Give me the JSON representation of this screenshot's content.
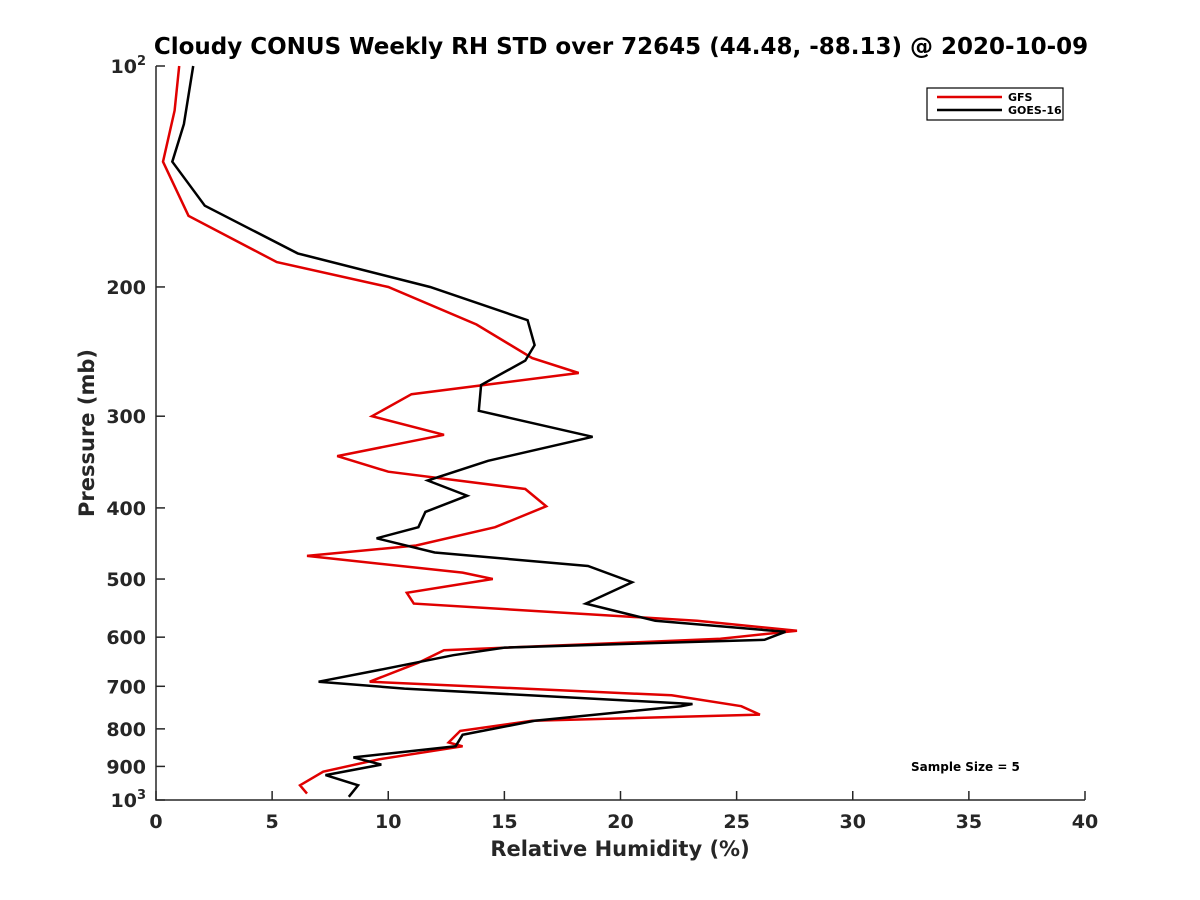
{
  "chart_data": {
    "type": "line",
    "title": "Cloudy CONUS Weekly RH STD over 72645 (44.48, -88.13) @ 2020-10-09",
    "xlabel": "Relative Humidity (%)",
    "ylabel": "Pressure (mb)",
    "xlim": [
      0,
      40
    ],
    "ylim": [
      100,
      1000
    ],
    "y_scale": "log",
    "y_reversed": true,
    "x_ticks": [
      0,
      5,
      10,
      15,
      20,
      25,
      30,
      35,
      40
    ],
    "y_ticks": [
      {
        "value": 100,
        "base": "10",
        "exp": "2"
      },
      {
        "value": 200,
        "label": "200"
      },
      {
        "value": 300,
        "label": "300"
      },
      {
        "value": 400,
        "label": "400"
      },
      {
        "value": 500,
        "label": "500"
      },
      {
        "value": 600,
        "label": "600"
      },
      {
        "value": 700,
        "label": "700"
      },
      {
        "value": 800,
        "label": "800"
      },
      {
        "value": 900,
        "label": "900"
      },
      {
        "value": 1000,
        "base": "10",
        "exp": "3"
      }
    ],
    "grid": false,
    "legend_position": "top-right",
    "annotation": "Sample Size = 5",
    "series": [
      {
        "name": "GFS",
        "color": "#e00000",
        "points": [
          [
            1.0,
            100
          ],
          [
            0.8,
            115
          ],
          [
            0.3,
            135
          ],
          [
            1.4,
            160
          ],
          [
            5.2,
            185
          ],
          [
            10.0,
            200
          ],
          [
            13.8,
            225
          ],
          [
            16.2,
            250
          ],
          [
            18.2,
            262
          ],
          [
            11.0,
            280
          ],
          [
            9.3,
            300
          ],
          [
            12.4,
            318
          ],
          [
            7.8,
            340
          ],
          [
            10.0,
            357
          ],
          [
            15.9,
            377
          ],
          [
            16.8,
            398
          ],
          [
            14.6,
            425
          ],
          [
            11.2,
            450
          ],
          [
            6.5,
            465
          ],
          [
            13.2,
            490
          ],
          [
            14.5,
            500
          ],
          [
            10.8,
            522
          ],
          [
            11.1,
            540
          ],
          [
            23.3,
            570
          ],
          [
            27.6,
            588
          ],
          [
            24.3,
            603
          ],
          [
            12.4,
            625
          ],
          [
            11.3,
            650
          ],
          [
            9.2,
            690
          ],
          [
            22.2,
            720
          ],
          [
            25.2,
            745
          ],
          [
            26.0,
            765
          ],
          [
            16.2,
            780
          ],
          [
            13.1,
            805
          ],
          [
            12.6,
            835
          ],
          [
            13.2,
            845
          ],
          [
            9.6,
            880
          ],
          [
            7.2,
            915
          ],
          [
            6.2,
            955
          ],
          [
            6.5,
            980
          ]
        ]
      },
      {
        "name": "GOES-16",
        "color": "#000000",
        "points": [
          [
            1.6,
            100
          ],
          [
            1.2,
            120
          ],
          [
            0.7,
            135
          ],
          [
            2.1,
            155
          ],
          [
            6.1,
            180
          ],
          [
            11.8,
            200
          ],
          [
            16.0,
            222
          ],
          [
            16.3,
            240
          ],
          [
            15.9,
            252
          ],
          [
            14.0,
            272
          ],
          [
            13.9,
            295
          ],
          [
            18.8,
            320
          ],
          [
            14.3,
            345
          ],
          [
            11.7,
            367
          ],
          [
            13.4,
            385
          ],
          [
            11.6,
            405
          ],
          [
            11.3,
            425
          ],
          [
            9.5,
            440
          ],
          [
            12.0,
            460
          ],
          [
            18.6,
            480
          ],
          [
            20.5,
            505
          ],
          [
            18.5,
            540
          ],
          [
            21.5,
            570
          ],
          [
            27.1,
            590
          ],
          [
            26.2,
            605
          ],
          [
            15.0,
            620
          ],
          [
            12.8,
            635
          ],
          [
            9.6,
            665
          ],
          [
            7.0,
            690
          ],
          [
            10.7,
            705
          ],
          [
            23.1,
            740
          ],
          [
            22.6,
            745
          ],
          [
            16.3,
            780
          ],
          [
            14.5,
            800
          ],
          [
            13.2,
            815
          ],
          [
            12.9,
            845
          ],
          [
            8.5,
            875
          ],
          [
            9.7,
            895
          ],
          [
            7.3,
            925
          ],
          [
            8.7,
            955
          ],
          [
            8.3,
            990
          ]
        ]
      }
    ]
  }
}
